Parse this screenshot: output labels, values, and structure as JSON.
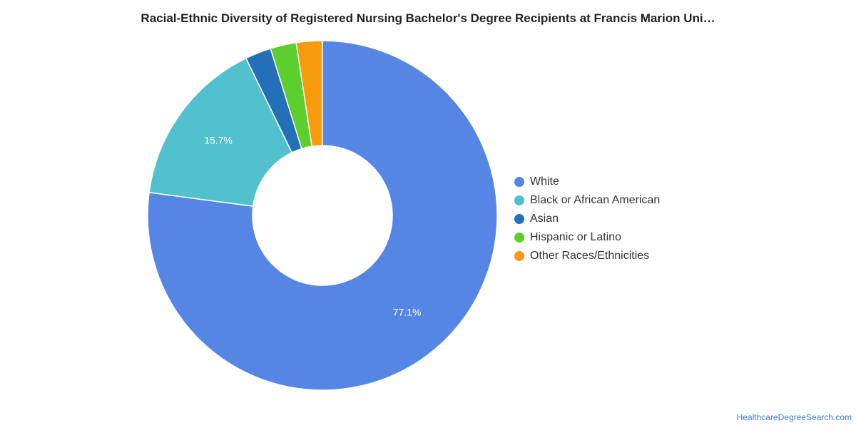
{
  "chart_data": {
    "type": "pie",
    "title": "Racial-Ethnic Diversity of Registered Nursing Bachelor's Degree Recipients at Francis Marion Uni…",
    "categories": [
      "White",
      "Black or African American",
      "Asian",
      "Hispanic or Latino",
      "Other Races/Ethnicities"
    ],
    "values": [
      77.1,
      15.7,
      2.4,
      2.4,
      2.4
    ],
    "colors": [
      "#5586e3",
      "#52c1ce",
      "#2370b9",
      "#5ccf2e",
      "#f79a0b"
    ],
    "data_labels": [
      "77.1%",
      "15.7%",
      "",
      "",
      ""
    ],
    "donut": true,
    "legend_position": "right"
  },
  "footer": {
    "source": "HealthcareDegreeSearch.com"
  }
}
